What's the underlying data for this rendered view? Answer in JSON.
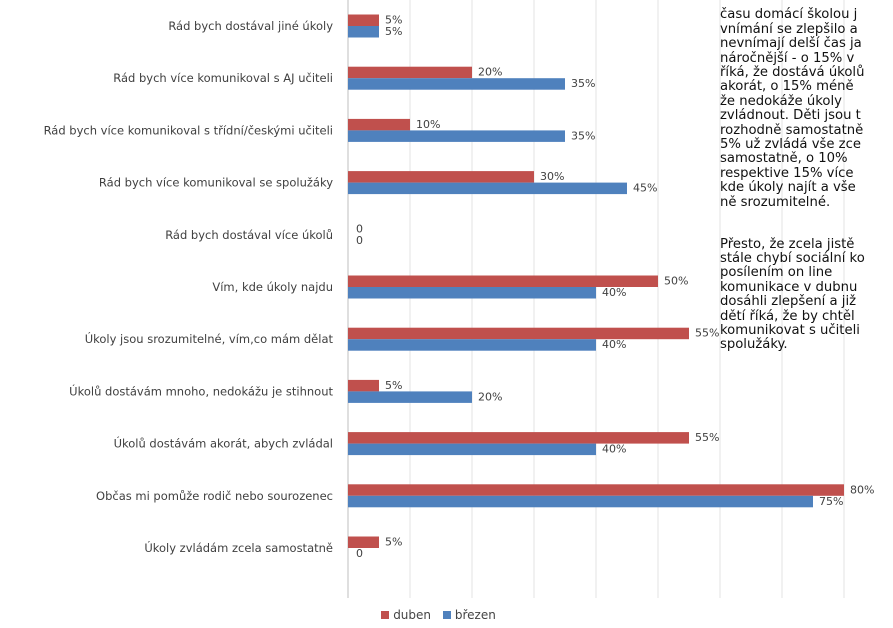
{
  "chart_data": {
    "type": "bar",
    "orientation": "horizontal",
    "categories": [
      "Rád bych dostával jiné úkoly",
      "Rád bych více komunikoval s AJ učiteli",
      "Rád bych více komunikoval s třídní/českými učiteli",
      "Rád bych více komunikoval se spolužáky",
      "Rád bych dostával více úkolů",
      "Vím, kde úkoly najdu",
      "Úkoly jsou srozumitelné, vím,co mám dělat",
      "Úkolů dostávám mnoho, nedokážu je stihnout",
      "Úkolů dostávám akorát, abych zvládal",
      "Občas mi pomůže rodič nebo sourozenec",
      "Úkoly zvládám zcela samostatně"
    ],
    "series": [
      {
        "name": "duben",
        "color": "#c0504d",
        "values": [
          5,
          20,
          10,
          30,
          0,
          50,
          55,
          5,
          55,
          80,
          5
        ]
      },
      {
        "name": "březen",
        "color": "#4f81bd",
        "values": [
          5,
          35,
          35,
          45,
          0,
          40,
          40,
          20,
          40,
          75,
          0
        ]
      }
    ],
    "value_suffix": "%",
    "grid": true,
    "legend": "bottom"
  },
  "side_text": [
    "času domácí školou j\nvnímání se zlepšilo a\nnevnímají delší čas ja\nnáročnější - o 15% v\nříká, že dostává úkolů\nakorát, o 15% méně\nže nedokáže úkoly\nzvládnout. Děti jsou t\nrozhodně samostatně\n5% už zvládá vše zce\nsamostatně, o 10%\nrespektive 15% více\nkde úkoly najít a vše\nně srozumitelné.",
    "Přesto, že zcela jistě\nstále chybí sociální ko\nposílením on line\nkomunikace v dubnu\ndosáhli zlepšení a již\ndětí říká, že by chtěl\nkomunikovat s učiteli\nspolužáky."
  ]
}
